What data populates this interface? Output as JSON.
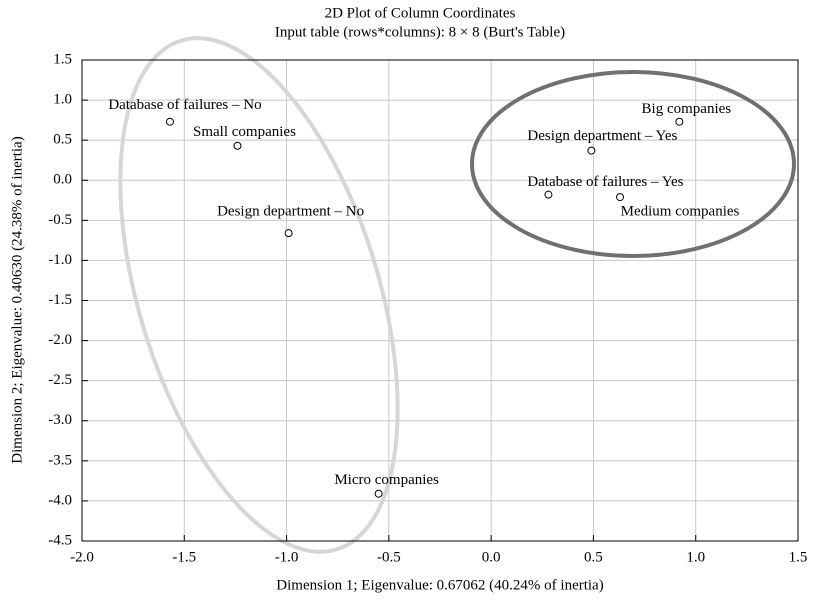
{
  "chart_data": {
    "type": "scatter",
    "title": "2D Plot of Column Coordinates",
    "subtitle": "Input table (rows*columns): 8 × 8 (Burt's Table)",
    "x_label": "Dimension 1; Eigenvalue: 0.67062 (40.24% of inertia)",
    "y_label": "Dimension 2; Eigenvalue: 0.40630 (24.38% of inertia)",
    "labels": [
      "Database of failures – No",
      "Small companies",
      "Design department – No",
      "Micro companies",
      "Big companies",
      "Design department – Yes",
      "Database of failures – Yes",
      "Medium companies"
    ],
    "x": [
      -1.57,
      -1.24,
      -0.99,
      -0.55,
      0.92,
      0.49,
      0.28,
      0.63
    ],
    "values": [
      0.73,
      0.43,
      -0.66,
      -3.91,
      0.73,
      0.37,
      -0.18,
      -0.21
    ],
    "color": "#000000",
    "xlim": [
      -2,
      1.5
    ],
    "xticks": [
      {
        "value": -2,
        "label": "-2.0"
      },
      -1.5,
      {
        "value": -1,
        "label": "-1.0"
      },
      -0.5,
      {
        "value": 0,
        "label": "0.0"
      },
      0.5,
      {
        "value": 1,
        "label": "1.0"
      },
      1.5
    ],
    "ylim": [
      -4.5,
      1.5
    ],
    "yticks": [
      {
        "value": -4.5,
        "label": "-4.5"
      },
      {
        "value": -4,
        "label": "-4.0"
      },
      -3.5,
      {
        "value": -3,
        "label": "-3.0"
      },
      -2.5,
      {
        "value": -2,
        "label": "-2.0"
      },
      -1.5,
      {
        "value": -1,
        "label": "-1.0"
      },
      -0.5,
      {
        "value": 0,
        "label": "0.0"
      },
      0.5,
      {
        "value": 1,
        "label": "1.0"
      },
      1.5
    ],
    "grid": true
  }
}
